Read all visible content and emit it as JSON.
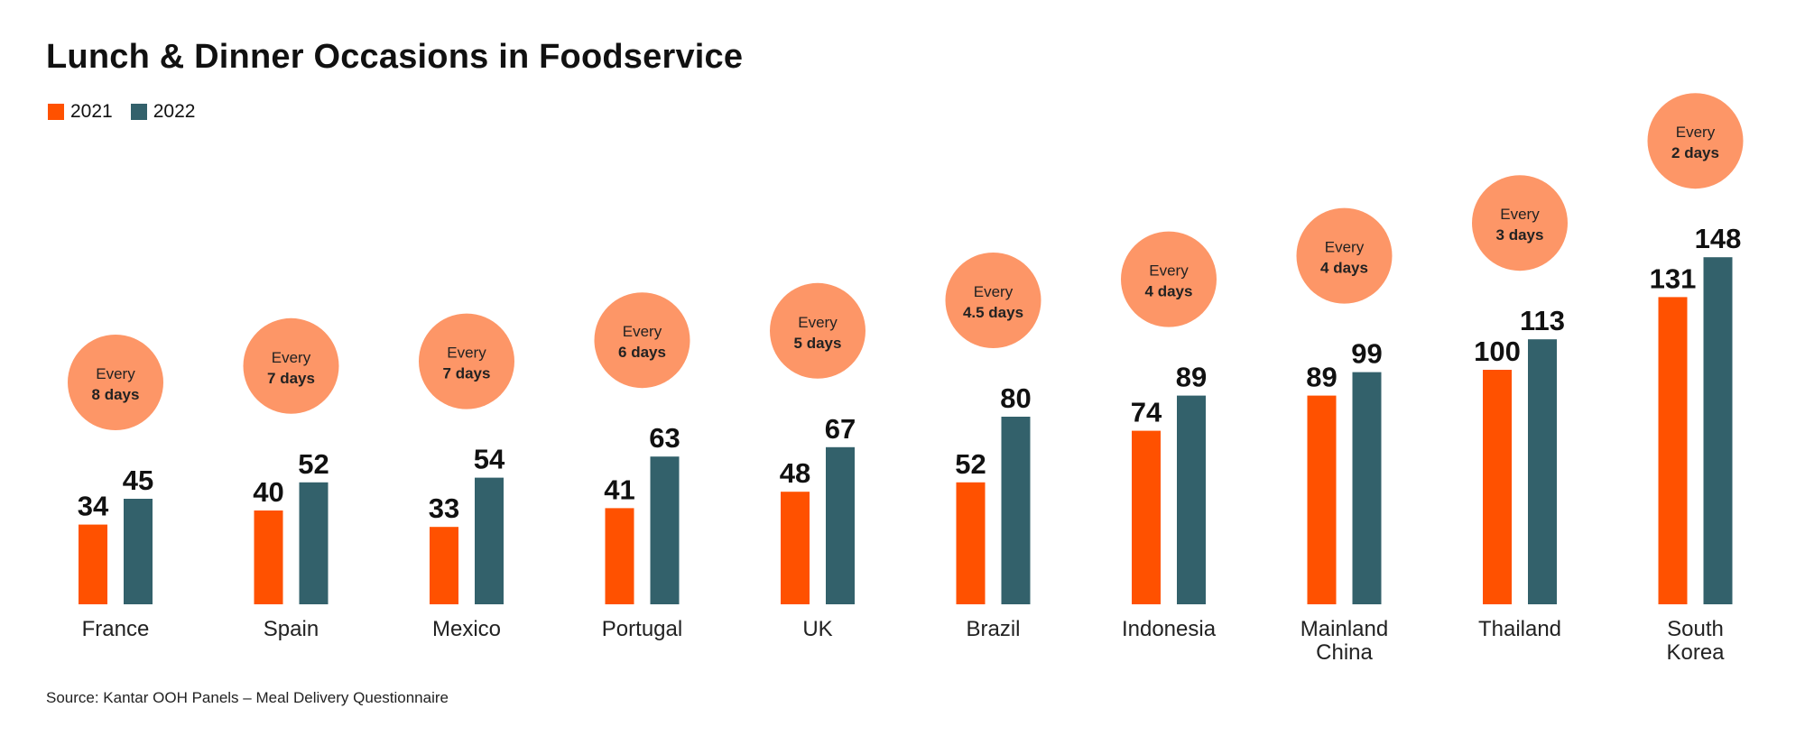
{
  "title": "Lunch & Dinner Occasions in Foodservice",
  "source": "Source: Kantar OOH Panels – Meal Delivery Questionnaire",
  "colors": {
    "2021": "#ff5100",
    "2022": "#33616b",
    "bubble": "#fd9667"
  },
  "chart_data": {
    "type": "bar",
    "title": "Lunch & Dinner Occasions in Foodservice",
    "categories": [
      "France",
      "Spain",
      "Mexico",
      "Portugal",
      "UK",
      "Brazil",
      "Indonesia",
      "Mainland China",
      "Thailand",
      "South Korea"
    ],
    "series": [
      {
        "name": "2021",
        "values": [
          34,
          40,
          33,
          41,
          48,
          52,
          74,
          89,
          100,
          131
        ]
      },
      {
        "name": "2022",
        "values": [
          45,
          52,
          54,
          63,
          67,
          80,
          89,
          99,
          113,
          148
        ]
      }
    ],
    "annotations": [
      {
        "line1": "Every",
        "line2": "8 days"
      },
      {
        "line1": "Every",
        "line2": "7 days"
      },
      {
        "line1": "Every",
        "line2": "7 days"
      },
      {
        "line1": "Every",
        "line2": "6 days"
      },
      {
        "line1": "Every",
        "line2": "5 days"
      },
      {
        "line1": "Every",
        "line2": "4.5 days"
      },
      {
        "line1": "Every",
        "line2": "4 days"
      },
      {
        "line1": "Every",
        "line2": "4 days"
      },
      {
        "line1": "Every",
        "line2": "3 days"
      },
      {
        "line1": "Every",
        "line2": "2 days"
      }
    ],
    "legend": "top-left",
    "grid": false,
    "ylim": [
      0,
      148
    ]
  }
}
